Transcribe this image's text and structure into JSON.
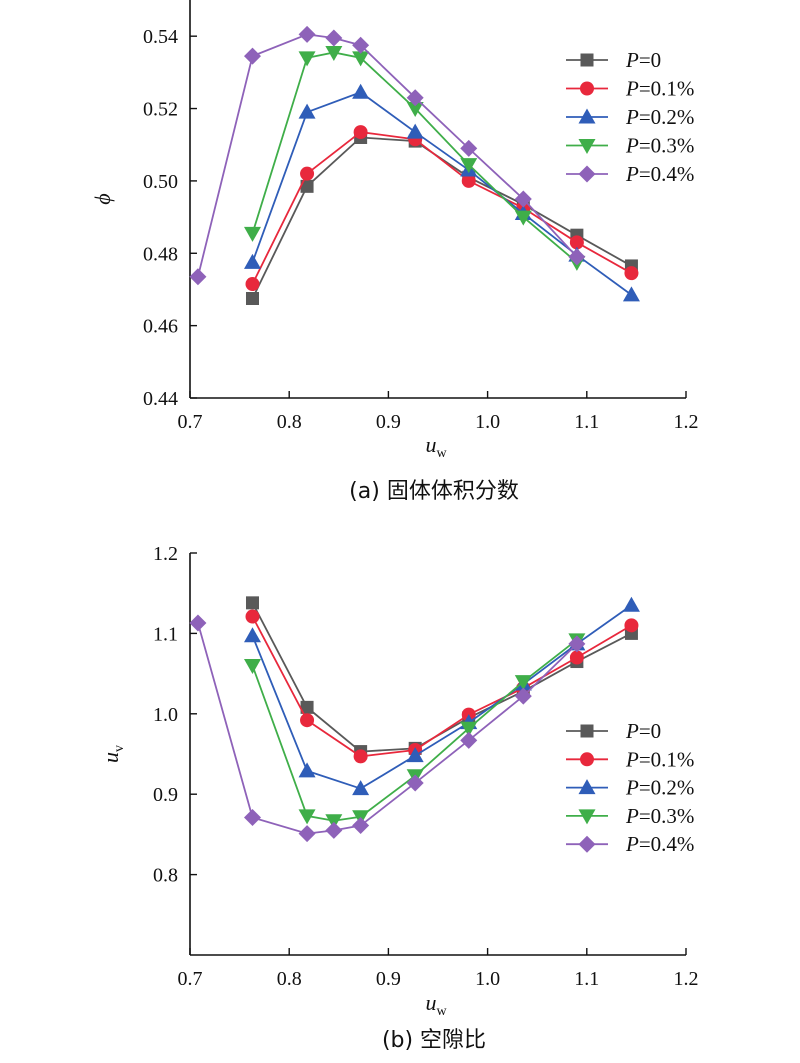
{
  "chart_data": [
    {
      "type": "line",
      "caption": "(a) 固体体积分数",
      "xlabel": {
        "main": "u",
        "sub": "w"
      },
      "ylabel": {
        "main": "ϕ",
        "sub": ""
      },
      "xlim": [
        0.7,
        1.2
      ],
      "ylim": [
        0.44,
        0.55
      ],
      "xticks": [
        "0.7",
        "0.8",
        "0.9",
        "1.0",
        "1.1",
        "1.2"
      ],
      "yticks": [
        "0.44",
        "0.46",
        "0.48",
        "0.50",
        "0.52",
        "0.54"
      ],
      "legend_position": "top-right",
      "series": [
        {
          "var": "P",
          "suffix": "=0",
          "color": "#595959",
          "marker": "square",
          "x": [
            0.763,
            0.818,
            0.872,
            0.927,
            0.981,
            1.036,
            1.09,
            1.145
          ],
          "y": [
            0.4675,
            0.4985,
            0.512,
            0.511,
            0.501,
            0.4935,
            0.485,
            0.4765
          ]
        },
        {
          "var": "P",
          "suffix": "=0.1%",
          "color": "#e8283c",
          "marker": "circle",
          "x": [
            0.763,
            0.818,
            0.872,
            0.927,
            0.981,
            1.036,
            1.09,
            1.145
          ],
          "y": [
            0.4715,
            0.502,
            0.5135,
            0.5115,
            0.5,
            0.4925,
            0.483,
            0.4745
          ]
        },
        {
          "var": "P",
          "suffix": "=0.2%",
          "color": "#2f5db8",
          "marker": "triangle-up",
          "x": [
            0.763,
            0.818,
            0.872,
            0.927,
            0.981,
            1.036,
            1.09,
            1.145
          ],
          "y": [
            0.4775,
            0.519,
            0.5245,
            0.5135,
            0.503,
            0.491,
            0.4795,
            0.4685
          ]
        },
        {
          "var": "P",
          "suffix": "=0.3%",
          "color": "#3fae49",
          "marker": "triangle-down",
          "x": [
            0.763,
            0.818,
            0.845,
            0.872,
            0.927,
            0.981,
            1.036,
            1.09
          ],
          "y": [
            0.4855,
            0.534,
            0.5355,
            0.534,
            0.52,
            0.5045,
            0.49,
            0.4775
          ]
        },
        {
          "var": "P",
          "suffix": "=0.4%",
          "color": "#8e62b9",
          "marker": "diamond",
          "x": [
            0.708,
            0.763,
            0.818,
            0.845,
            0.872,
            0.927,
            0.981,
            1.036,
            1.09
          ],
          "y": [
            0.4735,
            0.5345,
            0.5405,
            0.5395,
            0.5375,
            0.523,
            0.509,
            0.495,
            0.479
          ]
        }
      ]
    },
    {
      "type": "line",
      "caption": "(b) 空隙比",
      "xlabel": {
        "main": "u",
        "sub": "w"
      },
      "ylabel": {
        "main": "u",
        "sub": "v"
      },
      "xlim": [
        0.7,
        1.2
      ],
      "ylim": [
        0.7,
        1.2
      ],
      "xticks": [
        "0.7",
        "0.8",
        "0.9",
        "1.0",
        "1.1",
        "1.2"
      ],
      "yticks": [
        "0.8",
        "0.9",
        "1.0",
        "1.1",
        "1.2"
      ],
      "legend_position": "center-right",
      "series": [
        {
          "var": "P",
          "suffix": "=0",
          "color": "#595959",
          "marker": "square",
          "x": [
            0.763,
            0.818,
            0.872,
            0.927,
            0.981,
            1.036,
            1.09,
            1.145
          ],
          "y": [
            1.138,
            1.008,
            0.953,
            0.957,
            0.995,
            1.028,
            1.065,
            1.1
          ]
        },
        {
          "var": "P",
          "suffix": "=0.1%",
          "color": "#e8283c",
          "marker": "circle",
          "x": [
            0.763,
            0.818,
            0.872,
            0.927,
            0.981,
            1.036,
            1.09,
            1.145
          ],
          "y": [
            1.121,
            0.992,
            0.947,
            0.955,
            0.999,
            1.032,
            1.07,
            1.11
          ]
        },
        {
          "var": "P",
          "suffix": "=0.2%",
          "color": "#2f5db8",
          "marker": "triangle-up",
          "x": [
            0.763,
            0.818,
            0.872,
            0.927,
            0.981,
            1.036,
            1.09,
            1.145
          ],
          "y": [
            1.097,
            0.929,
            0.907,
            0.948,
            0.989,
            1.037,
            1.087,
            1.135
          ]
        },
        {
          "var": "P",
          "suffix": "=0.3%",
          "color": "#3fae49",
          "marker": "triangle-down",
          "x": [
            0.763,
            0.818,
            0.845,
            0.872,
            0.927,
            0.981,
            1.036,
            1.09
          ],
          "y": [
            1.06,
            0.873,
            0.867,
            0.872,
            0.923,
            0.982,
            1.04,
            1.092
          ]
        },
        {
          "var": "P",
          "suffix": "=0.4%",
          "color": "#8e62b9",
          "marker": "diamond",
          "x": [
            0.708,
            0.763,
            0.818,
            0.845,
            0.872,
            0.927,
            0.981,
            1.036,
            1.09
          ],
          "y": [
            1.113,
            0.871,
            0.851,
            0.855,
            0.861,
            0.914,
            0.967,
            1.022,
            1.087
          ]
        }
      ]
    }
  ]
}
